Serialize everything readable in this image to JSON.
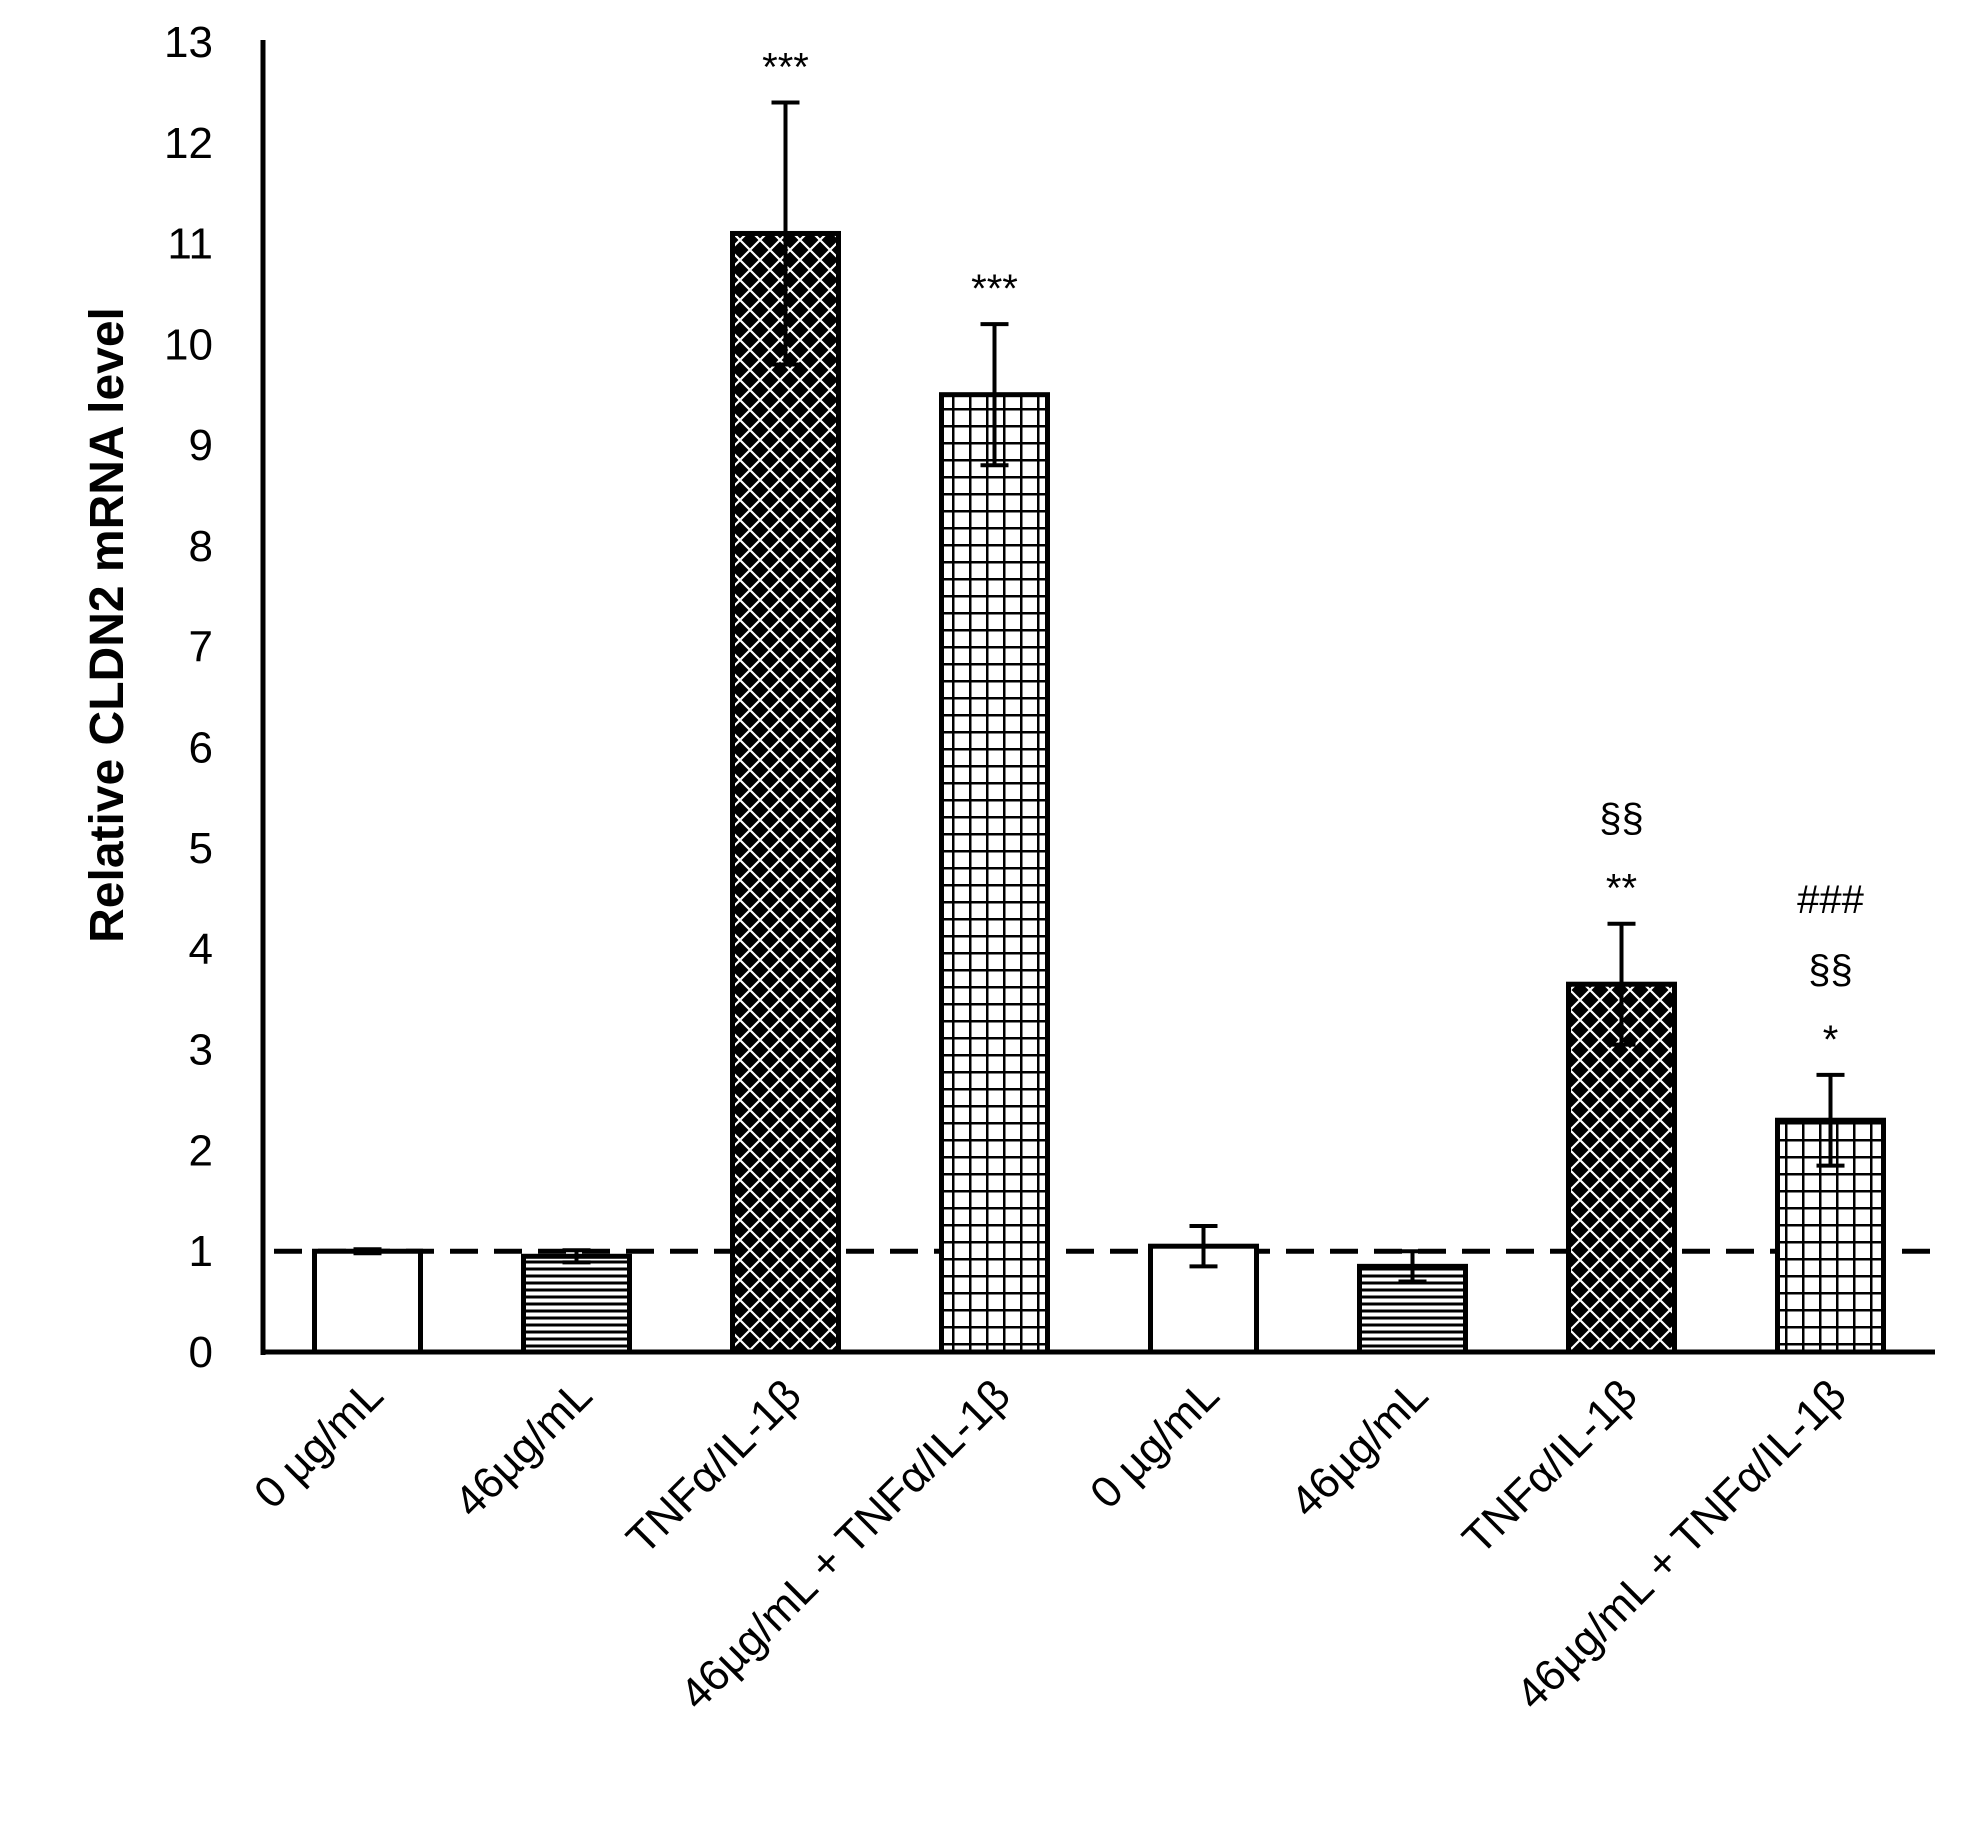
{
  "chart_data": {
    "type": "bar",
    "title": "",
    "xlabel": "",
    "ylabel": "Relative CLDN2  mRNA level",
    "ylim": [
      0,
      13
    ],
    "yticks": [
      0,
      1,
      2,
      3,
      4,
      5,
      6,
      7,
      8,
      9,
      10,
      11,
      12,
      13
    ],
    "grid": false,
    "legend": "none",
    "reference_line": {
      "y": 1,
      "style": "dashed"
    },
    "categories": [
      "0 µg/mL",
      "46µg/mL",
      "TNFα/IL-1β",
      "46µg/mL + TNFα/IL-1β",
      "0 µg/mL",
      "46µg/mL",
      "TNFα/IL-1β",
      "46µg/mL + TNFα/IL-1β"
    ],
    "values": [
      1.0,
      0.95,
      11.1,
      9.5,
      1.05,
      0.85,
      3.65,
      2.3
    ],
    "errors": [
      0.02,
      0.06,
      1.3,
      0.7,
      0.2,
      0.15,
      0.6,
      0.45
    ],
    "patterns": [
      "none",
      "horizontal",
      "diamond-cross",
      "grid",
      "none",
      "horizontal",
      "diamond-cross",
      "grid"
    ],
    "annotations": [
      [],
      [],
      [
        "***"
      ],
      [
        "***"
      ],
      [],
      [],
      [
        "**",
        "§§"
      ],
      [
        "*",
        "§§",
        "###"
      ]
    ]
  }
}
